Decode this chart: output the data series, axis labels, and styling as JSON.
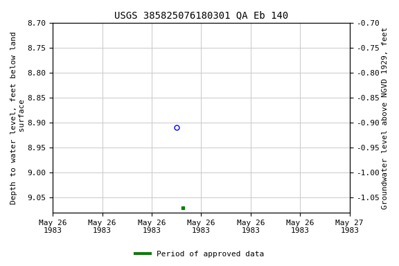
{
  "title": "USGS 385825076180301 QA Eb 140",
  "ylabel_left": "Depth to water level, feet below land\n surface",
  "ylabel_right": "Groundwater level above NGVD 1929, feet",
  "ylim_left_top": 8.7,
  "ylim_left_bottom": 9.08,
  "ylim_right_top": -0.7,
  "ylim_right_bottom": -1.08,
  "yticks_left": [
    8.7,
    8.75,
    8.8,
    8.85,
    8.9,
    8.95,
    9.0,
    9.05
  ],
  "yticks_right": [
    -0.7,
    -0.75,
    -0.8,
    -0.85,
    -0.9,
    -0.95,
    -1.0,
    -1.05
  ],
  "ytick_labels_left": [
    "8.70",
    "8.75",
    "8.80",
    "8.85",
    "8.90",
    "8.95",
    "9.00",
    "9.05"
  ],
  "ytick_labels_right": [
    "-0.70",
    "-0.75",
    "-0.80",
    "-0.85",
    "-0.90",
    "-0.95",
    "-1.00",
    "-1.05"
  ],
  "point_open_x_hours": 10.0,
  "point_open_y": 8.91,
  "point_open_color": "#0000ff",
  "point_filled_x_hours": 10.5,
  "point_filled_y": 9.07,
  "point_filled_color": "#008000",
  "xstart_hours": 0,
  "xend_hours": 24,
  "xtick_hours": [
    0,
    4,
    8,
    12,
    16,
    20,
    24
  ],
  "xtick_labels": [
    "May 26\n1983",
    "May 26\n1983",
    "May 26\n1983",
    "May 26\n1983",
    "May 26\n1983",
    "May 26\n1983",
    "May 27\n1983"
  ],
  "legend_label": "Period of approved data",
  "legend_color": "#008000",
  "bg_color": "#ffffff",
  "grid_color": "#c8c8c8",
  "title_fontsize": 10,
  "label_fontsize": 8,
  "tick_fontsize": 8,
  "legend_fontsize": 8
}
